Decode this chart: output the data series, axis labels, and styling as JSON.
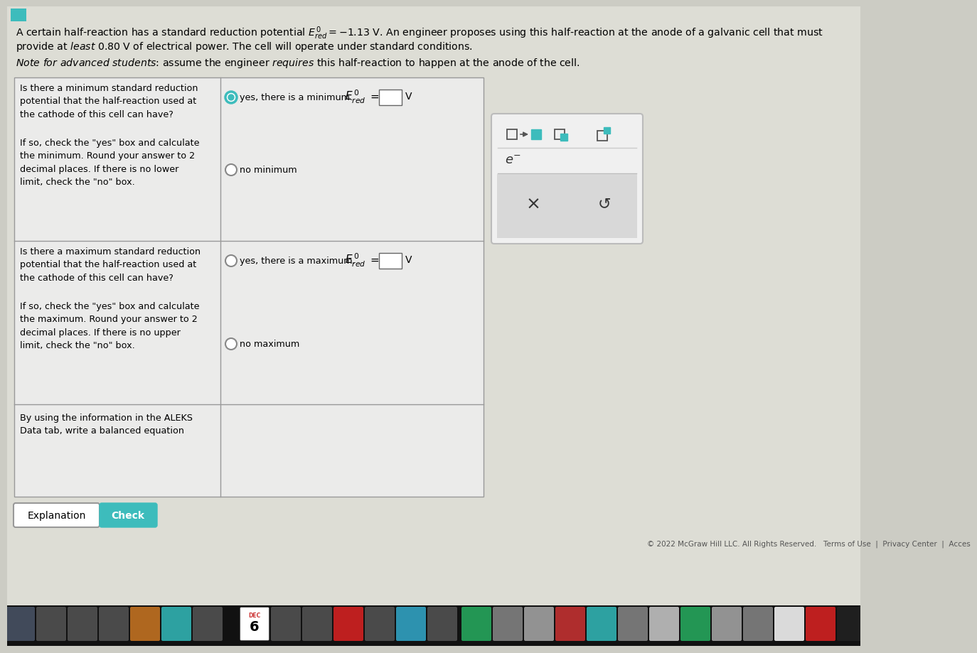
{
  "bg_color": "#ccccc4",
  "content_bg": "#ddddd5",
  "header_bg": "#ddddd5",
  "table_bg": "#ebebea",
  "table_border": "#999999",
  "popup_bg": "#f0f0f0",
  "popup_border": "#bbbbbb",
  "teal": "#3dbcbc",
  "row1_q": "Is there a minimum standard reduction\npotential that the half-reaction used at\nthe cathode of this cell can have?\n\nIf so, check the \"yes\" box and calculate\nthe minimum. Round your answer to 2\ndecimal places. If there is no lower\nlimit, check the \"no\" box.",
  "row1_radio1": "yes, there is a minimum.",
  "row1_radio1_sel": true,
  "row1_radio2": "no minimum",
  "row2_q": "Is there a maximum standard reduction\npotential that the half-reaction used at\nthe cathode of this cell can have?\n\nIf so, check the \"yes\" box and calculate\nthe maximum. Round your answer to 2\ndecimal places. If there is no upper\nlimit, check the \"no\" box.",
  "row2_radio1": "yes, there is a maximum.",
  "row2_radio1_sel": false,
  "row2_radio2": "no maximum",
  "row3_q": "By using the information in the ALEKS\nData tab, write a balanced equation",
  "btn1": "Explanation",
  "btn2": "Check",
  "footer": "© 2022 McGraw Hill LLC. All Rights Reserved.   Terms of Use  |  Privacy Center  |  Acces",
  "taskbar_bg": "#1a1a1a"
}
